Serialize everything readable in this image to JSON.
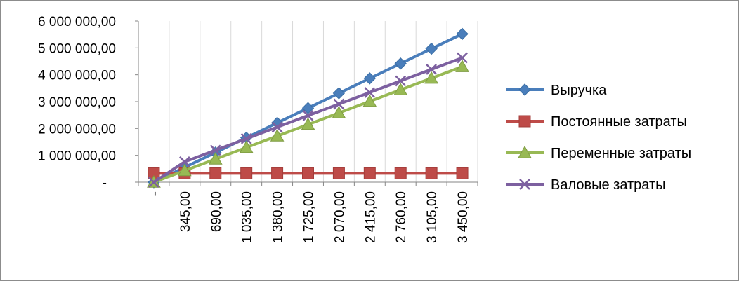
{
  "chart_data": {
    "type": "line",
    "categories": [
      "-",
      "345,00",
      "690,00",
      "1 035,00",
      "1 380,00",
      "1 725,00",
      "2 070,00",
      "2 415,00",
      "2 760,00",
      "3 105,00",
      "3 450,00"
    ],
    "x": [
      0,
      345,
      690,
      1035,
      1380,
      1725,
      2070,
      2415,
      2760,
      3105,
      3450
    ],
    "ylim": [
      0,
      6000000
    ],
    "y_ticks": [
      {
        "value": 0,
        "label": "-"
      },
      {
        "value": 1000000,
        "label": "1 000 000,00"
      },
      {
        "value": 2000000,
        "label": "2 000 000,00"
      },
      {
        "value": 3000000,
        "label": "3 000 000,00"
      },
      {
        "value": 4000000,
        "label": "4 000 000,00"
      },
      {
        "value": 5000000,
        "label": "5 000 000,00"
      },
      {
        "value": 6000000,
        "label": "6 000 000,00"
      }
    ],
    "grid": {
      "horizontal": false,
      "vertical": true
    },
    "legend_position": "right",
    "series": [
      {
        "name": "Выручка",
        "color": "#4a7ebb",
        "marker": "diamond",
        "values": [
          0,
          552000,
          1104000,
          1656000,
          2208000,
          2760000,
          3312000,
          3864000,
          4416000,
          4968000,
          5520000
        ]
      },
      {
        "name": "Постоянные затраты",
        "color": "#be4b48",
        "marker": "square",
        "values": [
          330000,
          330000,
          330000,
          330000,
          330000,
          330000,
          330000,
          330000,
          330000,
          330000,
          330000
        ]
      },
      {
        "name": "Переменные затраты",
        "color": "#98b954",
        "marker": "triangle",
        "values": [
          0,
          430000,
          860000,
          1290000,
          1720000,
          2150000,
          2580000,
          3010000,
          3440000,
          3870000,
          4300000
        ]
      },
      {
        "name": "Валовые затраты",
        "color": "#7d60a0",
        "marker": "x",
        "values": [
          0,
          760000,
          1190000,
          1620000,
          2050000,
          2480000,
          2910000,
          3340000,
          3770000,
          4200000,
          4630000
        ]
      }
    ]
  }
}
